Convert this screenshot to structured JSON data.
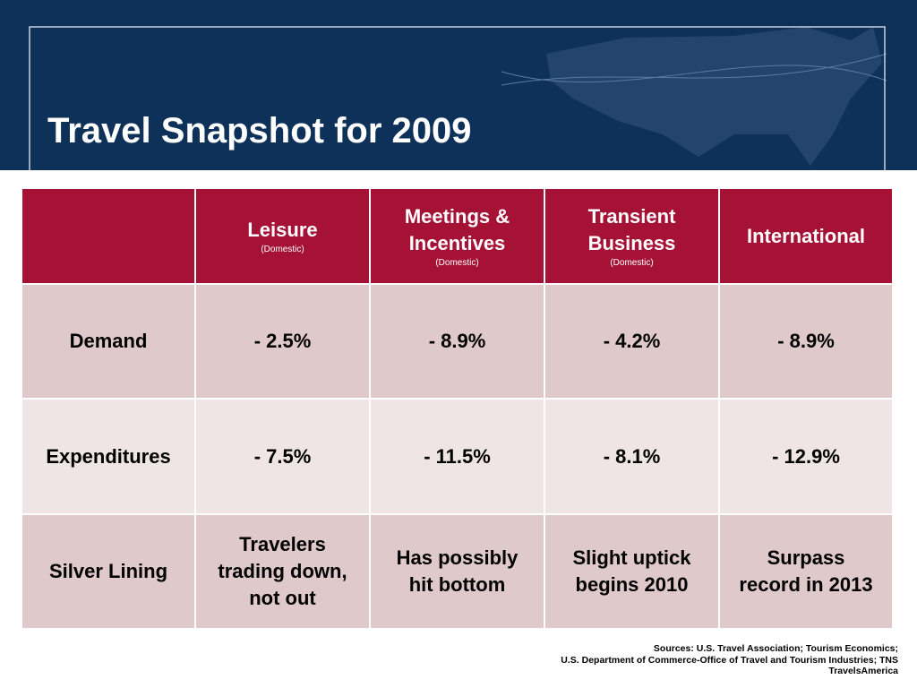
{
  "header": {
    "title": "Travel Snapshot for 2009"
  },
  "table": {
    "columns": [
      {
        "lines": [],
        "sub": null
      },
      {
        "lines": [
          "Leisure"
        ],
        "sub": "(Domestic)"
      },
      {
        "lines": [
          "Meetings &",
          "Incentives"
        ],
        "sub": "(Domestic)"
      },
      {
        "lines": [
          "Transient",
          "Business"
        ],
        "sub": "(Domestic)"
      },
      {
        "lines": [
          "International"
        ],
        "sub": null
      }
    ],
    "rows": [
      [
        [
          "Demand"
        ],
        [
          "- 2.5%"
        ],
        [
          "- 8.9%"
        ],
        [
          "- 4.2%"
        ],
        [
          "- 8.9%"
        ]
      ],
      [
        [
          "Expenditures"
        ],
        [
          "- 7.5%"
        ],
        [
          "- 11.5%"
        ],
        [
          "- 8.1%"
        ],
        [
          "- 12.9%"
        ]
      ],
      [
        [
          "Silver Lining"
        ],
        [
          "Travelers",
          "trading down,",
          "not out"
        ],
        [
          "Has possibly",
          "hit bottom"
        ],
        [
          "Slight uptick",
          "begins 2010"
        ],
        [
          "Surpass",
          "record in 2013"
        ]
      ]
    ]
  },
  "sources": [
    "Sources: U.S. Travel Association; Tourism Economics;",
    "U.S. Department of Commerce-Office of Travel and Tourism Industries; TNS",
    "TravelsAmerica"
  ]
}
